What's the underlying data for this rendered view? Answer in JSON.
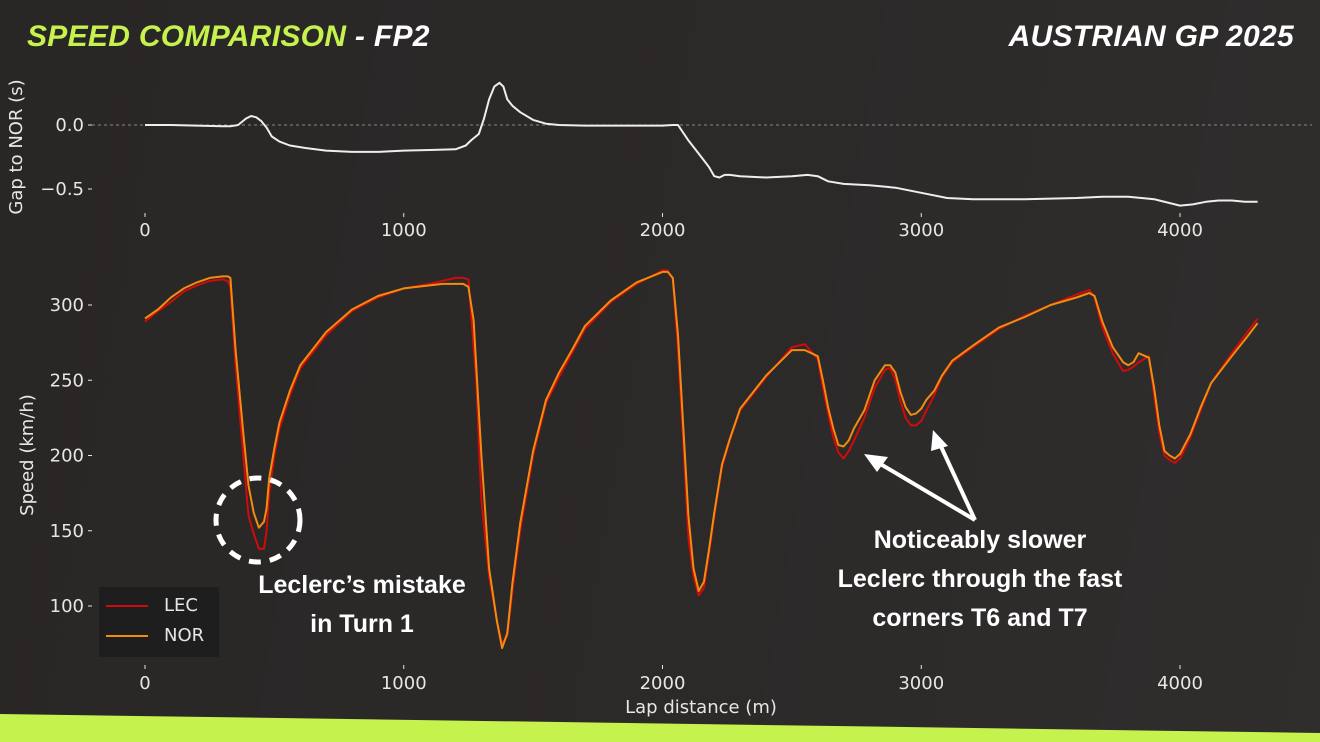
{
  "header": {
    "title_accent": "SPEED COMPARISON",
    "title_rest": " - FP2",
    "event": "AUSTRIAN GP 2025"
  },
  "colors": {
    "background": "#292626",
    "accent": "#c6f24e",
    "lec": "#d10a0a",
    "nor": "#f28c0f",
    "gap_line": "#eeeeee"
  },
  "legend": {
    "items": [
      {
        "label": "LEC",
        "color": "#d10a0a"
      },
      {
        "label": "NOR",
        "color": "#f28c0f"
      }
    ]
  },
  "annotations": {
    "turn1": {
      "line1": "Leclerc’s mistake",
      "line2": "in Turn 1"
    },
    "fast_corners": {
      "line1": "Noticeably slower",
      "line2": "Leclerc through the fast",
      "line3": "corners T6 and T7"
    }
  },
  "chart_data": [
    {
      "type": "line",
      "title": "Gap to NOR",
      "xlabel": "",
      "ylabel": "Gap to NOR (s)",
      "xlim": [
        -200,
        4400
      ],
      "ylim": [
        -0.65,
        0.4
      ],
      "xticks": [
        0,
        1000,
        2000,
        3000,
        4000
      ],
      "yticks": [
        0.0,
        -0.5
      ],
      "ytick_labels": [
        "0.0",
        "−0.5"
      ],
      "reference_line": {
        "y": 0.0,
        "style": "dashed"
      },
      "series": [
        {
          "name": "Gap LEC to NOR",
          "x": [
            0,
            100,
            200,
            300,
            330,
            360,
            390,
            410,
            430,
            450,
            470,
            490,
            520,
            560,
            620,
            700,
            800,
            900,
            1000,
            1100,
            1200,
            1240,
            1260,
            1290,
            1310,
            1330,
            1350,
            1370,
            1385,
            1400,
            1420,
            1450,
            1500,
            1550,
            1600,
            1700,
            1800,
            1900,
            2000,
            2040,
            2060,
            2100,
            2150,
            2180,
            2200,
            2220,
            2240,
            2260,
            2300,
            2400,
            2500,
            2560,
            2600,
            2640,
            2700,
            2800,
            2900,
            3000,
            3100,
            3200,
            3400,
            3600,
            3700,
            3800,
            3900,
            3920,
            4000,
            4050,
            4100,
            4150,
            4200,
            4250,
            4300
          ],
          "values": [
            0.0,
            0.0,
            -0.005,
            -0.01,
            -0.01,
            0.0,
            0.05,
            0.07,
            0.06,
            0.03,
            -0.02,
            -0.09,
            -0.13,
            -0.16,
            -0.18,
            -0.2,
            -0.21,
            -0.21,
            -0.2,
            -0.195,
            -0.19,
            -0.16,
            -0.12,
            -0.07,
            0.05,
            0.2,
            0.3,
            0.33,
            0.3,
            0.2,
            0.15,
            0.1,
            0.04,
            0.01,
            0.0,
            -0.005,
            -0.005,
            -0.005,
            -0.005,
            0.0,
            0.0,
            -0.12,
            -0.25,
            -0.33,
            -0.4,
            -0.41,
            -0.39,
            -0.39,
            -0.4,
            -0.41,
            -0.4,
            -0.39,
            -0.4,
            -0.44,
            -0.46,
            -0.47,
            -0.49,
            -0.53,
            -0.57,
            -0.58,
            -0.58,
            -0.57,
            -0.56,
            -0.56,
            -0.58,
            -0.59,
            -0.63,
            -0.62,
            -0.6,
            -0.59,
            -0.59,
            -0.6,
            -0.6
          ]
        }
      ]
    },
    {
      "type": "line",
      "title": "Speed comparison",
      "xlabel": "Lap distance (m)",
      "ylabel": "Speed (km/h)",
      "xlim": [
        -200,
        4400
      ],
      "ylim": [
        65,
        330
      ],
      "xticks": [
        0,
        1000,
        2000,
        3000,
        4000
      ],
      "yticks": [
        100,
        150,
        200,
        250,
        300
      ],
      "legend_position": "lower left",
      "series": [
        {
          "name": "LEC",
          "x": [
            0,
            50,
            100,
            150,
            200,
            250,
            300,
            320,
            330,
            350,
            380,
            400,
            420,
            440,
            460,
            470,
            480,
            500,
            520,
            560,
            600,
            700,
            800,
            900,
            1000,
            1100,
            1150,
            1200,
            1230,
            1250,
            1280,
            1300,
            1330,
            1360,
            1380,
            1400,
            1420,
            1450,
            1500,
            1550,
            1600,
            1650,
            1700,
            1800,
            1900,
            2000,
            2020,
            2040,
            2060,
            2080,
            2100,
            2120,
            2140,
            2160,
            2180,
            2200,
            2230,
            2260,
            2300,
            2400,
            2500,
            2550,
            2600,
            2620,
            2640,
            2660,
            2680,
            2700,
            2720,
            2740,
            2780,
            2820,
            2860,
            2880,
            2900,
            2920,
            2940,
            2960,
            2980,
            3000,
            3020,
            3050,
            3080,
            3120,
            3200,
            3300,
            3400,
            3500,
            3600,
            3650,
            3670,
            3700,
            3740,
            3780,
            3800,
            3820,
            3840,
            3880,
            3900,
            3920,
            3940,
            3960,
            3980,
            4000,
            4040,
            4080,
            4120,
            4160,
            4200,
            4260,
            4300
          ],
          "values": [
            289,
            296,
            302,
            309,
            313,
            316,
            317,
            316,
            312,
            260,
            200,
            160,
            148,
            138,
            138,
            150,
            175,
            200,
            218,
            240,
            258,
            280,
            296,
            305,
            311,
            314,
            316,
            318,
            318,
            317,
            250,
            170,
            120,
            90,
            75,
            80,
            110,
            150,
            200,
            235,
            252,
            268,
            284,
            302,
            314,
            323,
            323,
            317,
            270,
            210,
            145,
            120,
            107,
            112,
            135,
            160,
            192,
            210,
            230,
            252,
            272,
            274,
            264,
            245,
            228,
            212,
            202,
            198,
            203,
            210,
            225,
            245,
            257,
            258,
            250,
            236,
            225,
            220,
            220,
            223,
            230,
            240,
            252,
            262,
            272,
            284,
            293,
            300,
            307,
            310,
            305,
            285,
            268,
            256,
            257,
            259,
            262,
            266,
            240,
            215,
            200,
            197,
            195,
            198,
            212,
            230,
            248,
            258,
            268,
            282,
            291
          ]
        },
        {
          "name": "NOR",
          "x": [
            0,
            50,
            100,
            150,
            200,
            250,
            300,
            320,
            330,
            350,
            380,
            400,
            420,
            440,
            460,
            470,
            480,
            500,
            520,
            560,
            600,
            700,
            800,
            900,
            1000,
            1100,
            1150,
            1200,
            1230,
            1250,
            1270,
            1300,
            1330,
            1360,
            1380,
            1400,
            1420,
            1450,
            1500,
            1550,
            1600,
            1650,
            1700,
            1800,
            1900,
            2000,
            2020,
            2040,
            2060,
            2080,
            2100,
            2120,
            2140,
            2160,
            2180,
            2200,
            2230,
            2260,
            2300,
            2400,
            2500,
            2550,
            2600,
            2620,
            2640,
            2660,
            2680,
            2700,
            2720,
            2740,
            2780,
            2820,
            2860,
            2880,
            2900,
            2920,
            2940,
            2960,
            2980,
            3000,
            3020,
            3050,
            3080,
            3120,
            3200,
            3300,
            3400,
            3500,
            3600,
            3650,
            3670,
            3700,
            3740,
            3780,
            3800,
            3820,
            3840,
            3880,
            3900,
            3920,
            3940,
            3960,
            3980,
            4000,
            4040,
            4080,
            4120,
            4160,
            4200,
            4260,
            4300
          ],
          "values": [
            291,
            297,
            305,
            311,
            315,
            318,
            319,
            319,
            318,
            270,
            215,
            180,
            162,
            152,
            156,
            165,
            185,
            205,
            222,
            243,
            260,
            282,
            297,
            306,
            311,
            313,
            314,
            314,
            314,
            312,
            290,
            200,
            125,
            90,
            72,
            82,
            115,
            155,
            203,
            237,
            255,
            270,
            286,
            303,
            315,
            322,
            322,
            318,
            280,
            220,
            160,
            125,
            110,
            116,
            138,
            162,
            194,
            211,
            231,
            253,
            270,
            270,
            266,
            250,
            232,
            218,
            207,
            206,
            210,
            218,
            230,
            250,
            260,
            260,
            255,
            242,
            232,
            227,
            228,
            231,
            237,
            243,
            253,
            263,
            273,
            285,
            292,
            300,
            305,
            308,
            306,
            289,
            272,
            262,
            260,
            262,
            268,
            265,
            245,
            220,
            203,
            200,
            198,
            201,
            214,
            232,
            248,
            257,
            266,
            279,
            288
          ]
        }
      ]
    }
  ]
}
